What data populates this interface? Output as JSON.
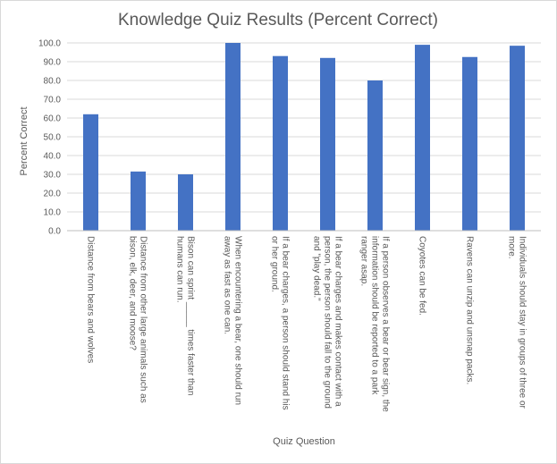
{
  "chart_data": {
    "type": "bar",
    "title": "Knowledge Quiz Results (Percent Correct)",
    "xlabel": "Quiz Question",
    "ylabel": "Percent Correct",
    "ylim": [
      0,
      100
    ],
    "ytick_labels": [
      "0.0",
      "10.0",
      "20.0",
      "30.0",
      "40.0",
      "50.0",
      "60.0",
      "70.0",
      "80.0",
      "90.0",
      "100.0"
    ],
    "grid": true,
    "bar_color": "#4472c4",
    "categories": [
      [
        "Distance from bears and wolves"
      ],
      [
        "Distance from other large animals such as",
        "bison, elk, deer, and moose?"
      ],
      [
        "Bison can sprint _____ times faster than",
        "humans can run."
      ],
      [
        "When encountering a bear, one should run",
        "away as fast as one can."
      ],
      [
        "If a bear charges, a person should stand his",
        "or her ground."
      ],
      [
        "If a bear charges and makes contact with a",
        "person, the person should fall to the ground",
        "and \"play dead.\""
      ],
      [
        "If a person observes a bear or bear sign, the",
        "information should be reported to a park",
        "ranger asap."
      ],
      [
        "Coyotes can be fed."
      ],
      [
        "Ravens can unzip and unsnap packs."
      ],
      [
        "Individuals should stay in groups of three or",
        "more."
      ]
    ],
    "values": [
      62,
      31.5,
      30,
      100,
      93,
      92,
      80,
      99,
      92.5,
      98.5
    ]
  }
}
